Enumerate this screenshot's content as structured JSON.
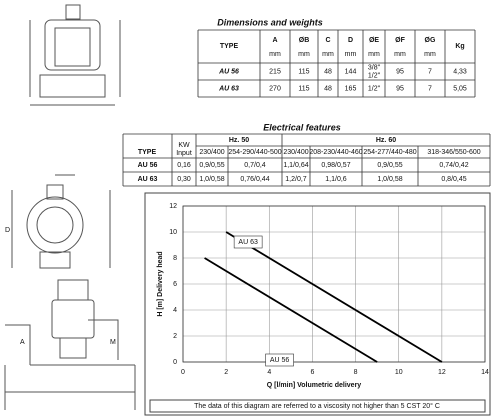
{
  "dimensions": {
    "title": "Dimensions and weights",
    "columns": [
      [
        "TYPE"
      ],
      [
        "A",
        "mm"
      ],
      [
        "ØB",
        "mm"
      ],
      [
        "C",
        "mm"
      ],
      [
        "D",
        "mm"
      ],
      [
        "ØE",
        "mm"
      ],
      [
        "ØF",
        "mm"
      ],
      [
        "ØG",
        "mm"
      ],
      [
        "Kg"
      ]
    ],
    "rows": [
      [
        "AU 56",
        "215",
        "115",
        "48",
        "144",
        [
          "3/8\"",
          "1/2\""
        ],
        "95",
        "7",
        "4,33"
      ],
      [
        "AU 63",
        "270",
        "115",
        "48",
        "165",
        "1/2\"",
        "95",
        "7",
        "5,05"
      ]
    ]
  },
  "electrical": {
    "title": "Electrical features",
    "type_header": "TYPE",
    "kw_header": [
      "KW",
      "Input"
    ],
    "groups": [
      {
        "label": "Hz. 50",
        "voltages": [
          "230/400",
          "254-290/440-500"
        ]
      },
      {
        "label": "Hz. 60",
        "voltages": [
          "230/400",
          "208-230/440-460",
          "254-277/440-480",
          "318-346/550-600"
        ]
      }
    ],
    "rows": [
      [
        "AU 56",
        "0,16",
        "0,9/0,55",
        "0,7/0,4",
        "1,1/0,64",
        "0,98/0,57",
        "0,9/0,55",
        "0,74/0,42"
      ],
      [
        "AU 63",
        "0,30",
        "1,0/0,58",
        "0,76/0,44",
        "1,2/0,7",
        "1,1/0,6",
        "1,0/0,58",
        "0,8/0,45"
      ]
    ]
  },
  "drawing_labels": [
    "A",
    "M",
    "D"
  ],
  "chart_data": {
    "type": "line",
    "ylabel": "H [m] Delivery head",
    "xlabel": "Q [l/min] Volumetric delivery",
    "xlim": [
      0,
      14
    ],
    "ylim": [
      0,
      12
    ],
    "xticks": [
      0,
      2,
      4,
      6,
      8,
      10,
      12,
      14
    ],
    "yticks": [
      0,
      2,
      4,
      6,
      8,
      10,
      12
    ],
    "grid": true,
    "color": "#000000",
    "series": [
      {
        "name": "AU 63",
        "x": [
          2,
          12
        ],
        "values": [
          10,
          0
        ]
      },
      {
        "name": "AU 56",
        "x": [
          1,
          9
        ],
        "values": [
          8,
          0
        ]
      }
    ],
    "note": "The data of this diagram are referred to a viscosity not higher than 5 CST 20° C"
  }
}
